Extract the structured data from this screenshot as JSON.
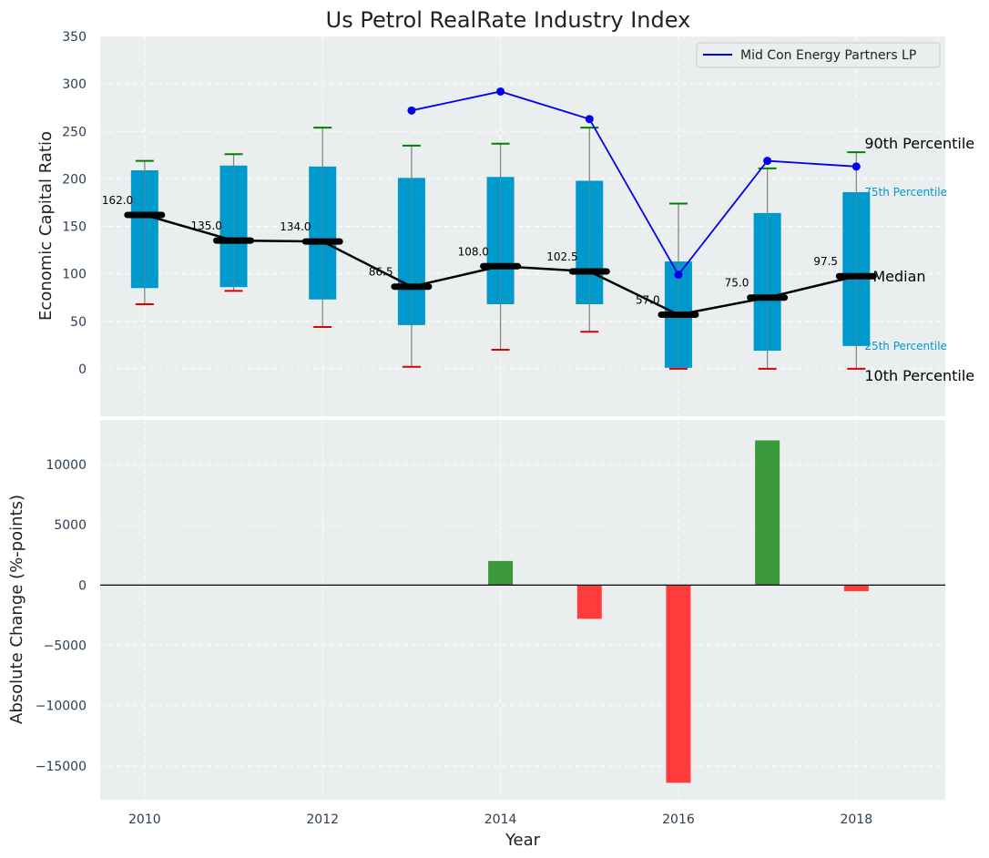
{
  "chart_data": [
    {
      "type": "box",
      "title": "Us Petrol RealRate Industry Index",
      "ylabel": "Economic Capital Ratio",
      "ylim": [
        -50,
        350
      ],
      "yticks": [
        0,
        50,
        100,
        150,
        200,
        250,
        300,
        350
      ],
      "years": [
        2010,
        2011,
        2012,
        2013,
        2014,
        2015,
        2016,
        2017,
        2018
      ],
      "p10": [
        68,
        82,
        44,
        2,
        20,
        39,
        0,
        0,
        0
      ],
      "p25": [
        85,
        86,
        73,
        46,
        68,
        68,
        1,
        19,
        24
      ],
      "median": [
        162.0,
        135.0,
        134.0,
        86.5,
        108.0,
        102.5,
        57.0,
        75.0,
        97.5
      ],
      "median_labels": [
        "162.0",
        "135.0",
        "134.0",
        "86.5",
        "108.0",
        "102.5",
        "57.0",
        "75.0",
        "97.5"
      ],
      "p75": [
        209,
        214,
        213,
        201,
        202,
        198,
        113,
        164,
        186
      ],
      "p90": [
        219,
        226,
        254,
        235,
        237,
        254,
        174,
        211,
        228
      ],
      "company_series": {
        "name": "Mid Con Energy Partners LP",
        "years": [
          2013,
          2014,
          2015,
          2016,
          2017,
          2018
        ],
        "values": [
          272,
          292,
          263,
          99,
          219,
          213
        ]
      },
      "annotations": {
        "p90": "90th Percentile",
        "p75": "75th Percentile",
        "median": "Median",
        "p25": "25th Percentile",
        "p10": "10th Percentile"
      },
      "legend_position": "top-right"
    },
    {
      "type": "bar",
      "ylabel": "Absolute Change (%-points)",
      "xlabel": "Year",
      "ylim": [
        -17800,
        13700
      ],
      "yticks": [
        -15000,
        -10000,
        -5000,
        0,
        5000,
        10000
      ],
      "ytick_labels": [
        "−15000",
        "−10000",
        "−5000",
        "0",
        "5000",
        "10000"
      ],
      "years": [
        2014,
        2015,
        2016,
        2017,
        2018
      ],
      "values": [
        2000,
        -2800,
        -16400,
        12000,
        -500
      ],
      "xticks": [
        2010,
        2012,
        2014,
        2016,
        2018
      ],
      "xlim": [
        2009.5,
        2019
      ]
    }
  ],
  "colors": {
    "plot_bg": "#eaeeee",
    "box": "#0099cc",
    "median": "#000000",
    "p90_cap": "#008000",
    "p10_cap": "#dd0000",
    "whisker": "#808080",
    "company": "#0000ee",
    "bar_pos": "#3a9a3a",
    "bar_neg": "#ff3b3b"
  }
}
